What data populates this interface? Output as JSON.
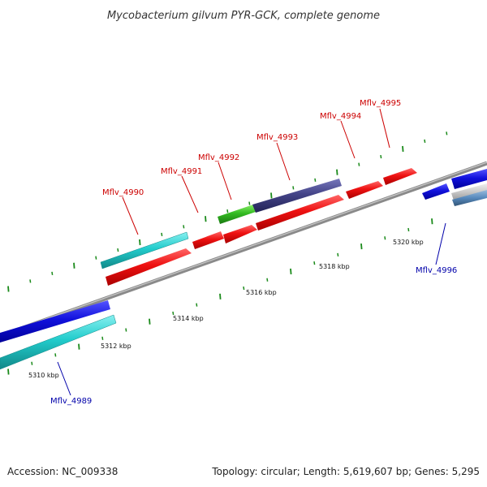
{
  "title": "Mycobacterium gilvum PYR-GCK, complete genome",
  "footer": {
    "accession": "Accession: NC_009338",
    "summary": "Topology: circular; Length: 5,619,607 bp; Genes: 5,295"
  },
  "colors": {
    "label_forward": "#cc0000",
    "label_reverse": "#0000aa",
    "tick": "#1a8a1a",
    "backbone": "#8a8a8a"
  },
  "scale_labels": [
    "5310 kbp",
    "5312 kbp",
    "5314 kbp",
    "5316 kbp",
    "5318 kbp",
    "5320 kbp"
  ],
  "genes_forward": [
    {
      "name": "Mflv_4990",
      "color": "#ee1111"
    },
    {
      "name": "Mflv_4991",
      "color": "#ee1111"
    },
    {
      "name": "Mflv_4992",
      "color": "#ee1111"
    },
    {
      "name": "Mflv_4993",
      "color": "#ee1111"
    },
    {
      "name": "Mflv_4994",
      "color": "#ee1111"
    },
    {
      "name": "Mflv_4995",
      "color": "#ee1111"
    }
  ],
  "genes_reverse": [
    {
      "name": "Mflv_4989",
      "color": "#1111dd"
    },
    {
      "name": "Mflv_4996",
      "color": "#1111dd"
    }
  ]
}
